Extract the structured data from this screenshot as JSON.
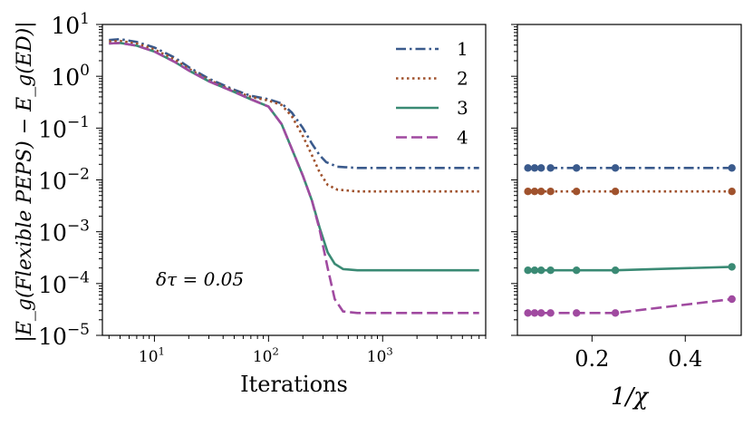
{
  "chart_data": [
    {
      "type": "line",
      "ylabel": "|E_g(Flexible PEPS) − E_g(ED)|",
      "xlabel": "Iterations",
      "xscale": "log",
      "yscale": "log",
      "xlim": [
        3.5,
        8000
      ],
      "ylim": [
        1e-05,
        10
      ],
      "x_ticks": [
        {
          "value": 10,
          "base": "10",
          "exp": "1"
        },
        {
          "value": 100,
          "base": "10",
          "exp": "2"
        },
        {
          "value": 1000,
          "base": "10",
          "exp": "3"
        }
      ],
      "y_ticks": [
        {
          "value": 10,
          "base": "10",
          "exp": "1"
        },
        {
          "value": 1,
          "base": "10",
          "exp": "0"
        },
        {
          "value": 0.1,
          "base": "10",
          "exp": "−1"
        },
        {
          "value": 0.01,
          "base": "10",
          "exp": "−2"
        },
        {
          "value": 0.001,
          "base": "10",
          "exp": "−3"
        },
        {
          "value": 0.0001,
          "base": "10",
          "exp": "−4"
        },
        {
          "value": 1e-05,
          "base": "10",
          "exp": "−5"
        }
      ],
      "annotation": {
        "text": "δτ = 0.05",
        "x": 9,
        "y": 0.00012
      },
      "legend": "top-right",
      "series": [
        {
          "name": "1",
          "color": "#3a5a8c",
          "dash": "dashdot",
          "x": [
            4,
            5,
            7,
            10,
            15,
            20,
            30,
            50,
            70,
            100,
            130,
            160,
            200,
            240,
            280,
            320,
            400,
            600,
            1000,
            7000
          ],
          "y": [
            5.0,
            5.2,
            4.6,
            3.6,
            2.3,
            1.5,
            0.9,
            0.55,
            0.42,
            0.36,
            0.3,
            0.2,
            0.1,
            0.05,
            0.03,
            0.022,
            0.018,
            0.017,
            0.017,
            0.017
          ]
        },
        {
          "name": "2",
          "color": "#a0522d",
          "dash": "dotted",
          "x": [
            4,
            5,
            7,
            10,
            15,
            20,
            30,
            50,
            70,
            100,
            130,
            160,
            200,
            240,
            280,
            330,
            400,
            600,
            1000,
            7000
          ],
          "y": [
            4.7,
            4.8,
            4.3,
            3.3,
            2.1,
            1.4,
            0.85,
            0.52,
            0.4,
            0.34,
            0.28,
            0.17,
            0.07,
            0.03,
            0.014,
            0.008,
            0.0065,
            0.006,
            0.006,
            0.006
          ]
        },
        {
          "name": "3",
          "color": "#3a8a74",
          "dash": "solid",
          "x": [
            4,
            5,
            7,
            10,
            15,
            20,
            30,
            50,
            70,
            100,
            130,
            160,
            200,
            240,
            280,
            330,
            380,
            450,
            600,
            1000,
            7000
          ],
          "y": [
            4.3,
            4.4,
            3.9,
            3.0,
            1.9,
            1.3,
            0.8,
            0.5,
            0.36,
            0.26,
            0.12,
            0.04,
            0.012,
            0.004,
            0.0012,
            0.0004,
            0.00024,
            0.00019,
            0.00018,
            0.00018,
            0.00018
          ]
        },
        {
          "name": "4",
          "color": "#a04aa0",
          "dash": "dashed",
          "x": [
            4,
            5,
            7,
            10,
            15,
            20,
            30,
            50,
            70,
            100,
            130,
            160,
            200,
            240,
            280,
            330,
            380,
            450,
            600,
            1000,
            7000
          ],
          "y": [
            4.3,
            4.4,
            3.9,
            3.0,
            1.9,
            1.3,
            0.8,
            0.5,
            0.36,
            0.26,
            0.12,
            0.04,
            0.012,
            0.004,
            0.0011,
            0.0002,
            5e-05,
            2.9e-05,
            2.7e-05,
            2.7e-05,
            2.7e-05
          ]
        }
      ]
    },
    {
      "type": "line",
      "xlabel": "1/χ",
      "xscale": "linear",
      "yscale": "log",
      "xlim": [
        0.04,
        0.52
      ],
      "ylim": [
        1e-05,
        10
      ],
      "x_ticks": [
        {
          "value": 0.2,
          "label": "0.2"
        },
        {
          "value": 0.4,
          "label": "0.4"
        }
      ],
      "series": [
        {
          "name": "1",
          "color": "#3a5a8c",
          "dash": "dashdot",
          "markers": true,
          "x": [
            0.0625,
            0.0769,
            0.0909,
            0.1111,
            0.1667,
            0.25,
            0.5
          ],
          "y": [
            0.017,
            0.017,
            0.017,
            0.017,
            0.017,
            0.017,
            0.017
          ]
        },
        {
          "name": "2",
          "color": "#a0522d",
          "dash": "dotted",
          "markers": true,
          "x": [
            0.0625,
            0.0769,
            0.0909,
            0.1111,
            0.1667,
            0.25,
            0.5
          ],
          "y": [
            0.006,
            0.006,
            0.006,
            0.006,
            0.006,
            0.006,
            0.006
          ]
        },
        {
          "name": "3",
          "color": "#3a8a74",
          "dash": "solid",
          "markers": true,
          "x": [
            0.0625,
            0.0769,
            0.0909,
            0.1111,
            0.1667,
            0.25,
            0.5
          ],
          "y": [
            0.00018,
            0.00018,
            0.00018,
            0.00018,
            0.00018,
            0.00018,
            0.00021
          ]
        },
        {
          "name": "4",
          "color": "#a04aa0",
          "dash": "dashed",
          "markers": true,
          "x": [
            0.0625,
            0.0769,
            0.0909,
            0.1111,
            0.1667,
            0.25,
            0.5
          ],
          "y": [
            2.7e-05,
            2.7e-05,
            2.7e-05,
            2.7e-05,
            2.7e-05,
            2.7e-05,
            5e-05
          ]
        }
      ]
    }
  ]
}
